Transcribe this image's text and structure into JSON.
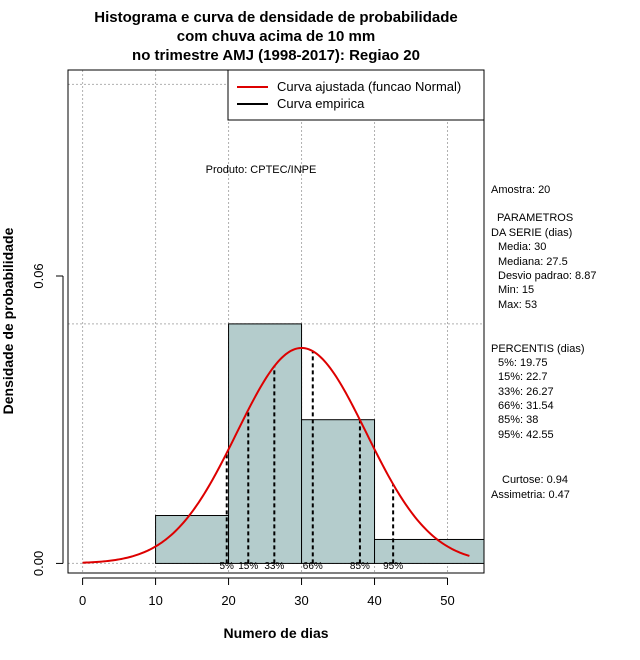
{
  "chart_data": {
    "type": "histogram",
    "title": [
      "Histograma e curva de densidade de probabilidade",
      "com chuva acima de 10 mm",
      "no trimestre AMJ (1998-2017): Regiao 20"
    ],
    "xlabel": "Numero de dias",
    "ylabel": "Densidade de probabilidade",
    "xlim": [
      -2,
      55
    ],
    "ylim": [
      -0.002,
      0.103
    ],
    "x_ticks": [
      0,
      10,
      20,
      30,
      40,
      50
    ],
    "y_ticks": [
      0.0,
      0.06
    ],
    "x_tick_labels": [
      "0",
      "10",
      "20",
      "30",
      "40",
      "50"
    ],
    "y_tick_labels": [
      "0.00",
      "0.06"
    ],
    "grid_x": [
      0,
      10,
      20,
      30,
      40,
      50
    ],
    "grid_y": [
      0.0,
      0.05,
      0.1
    ],
    "bins": [
      {
        "start": 10,
        "end": 20,
        "density": 0.01
      },
      {
        "start": 20,
        "end": 30,
        "density": 0.05
      },
      {
        "start": 30,
        "end": 40,
        "density": 0.03
      },
      {
        "start": 40,
        "end": 55,
        "density": 0.005
      }
    ],
    "bar_color": "#b4cccc",
    "normal_curve": {
      "name": "Curva ajustada (funcao Normal)",
      "color": "#dd0000",
      "mean": 30,
      "sd": 8.87,
      "x_from": 0,
      "x_to": 53
    },
    "empirical_curve": {
      "name": "Curva empirica",
      "color": "#000000"
    },
    "percentile_lines": [
      {
        "label": "5%",
        "x": 19.75
      },
      {
        "label": "15%",
        "x": 22.7
      },
      {
        "label": "33%",
        "x": 26.27
      },
      {
        "label": "66%",
        "x": 31.54
      },
      {
        "label": "85%",
        "x": 38
      },
      {
        "label": "95%",
        "x": 42.55
      }
    ],
    "legend_position": "top-right",
    "annotation": "Produto: CPTEC/INPE"
  },
  "side_panel": {
    "sample": "Amostra: 20",
    "params_title_1": "PARAMETROS",
    "params_title_2": "DA SERIE (dias)",
    "params": [
      "Media: 30",
      "Mediana: 27.5",
      "Desvio padrao: 8.87",
      "Min: 15",
      "Max: 53"
    ],
    "percentis_title": "PERCENTIS (dias)",
    "percentis": [
      "5%: 19.75",
      "15%: 22.7",
      "33%: 26.27",
      "66%: 31.54",
      "85%: 38",
      "95%: 42.55"
    ],
    "curtose": "Curtose: 0.94",
    "assimetria": "Assimetria: 0.47"
  }
}
